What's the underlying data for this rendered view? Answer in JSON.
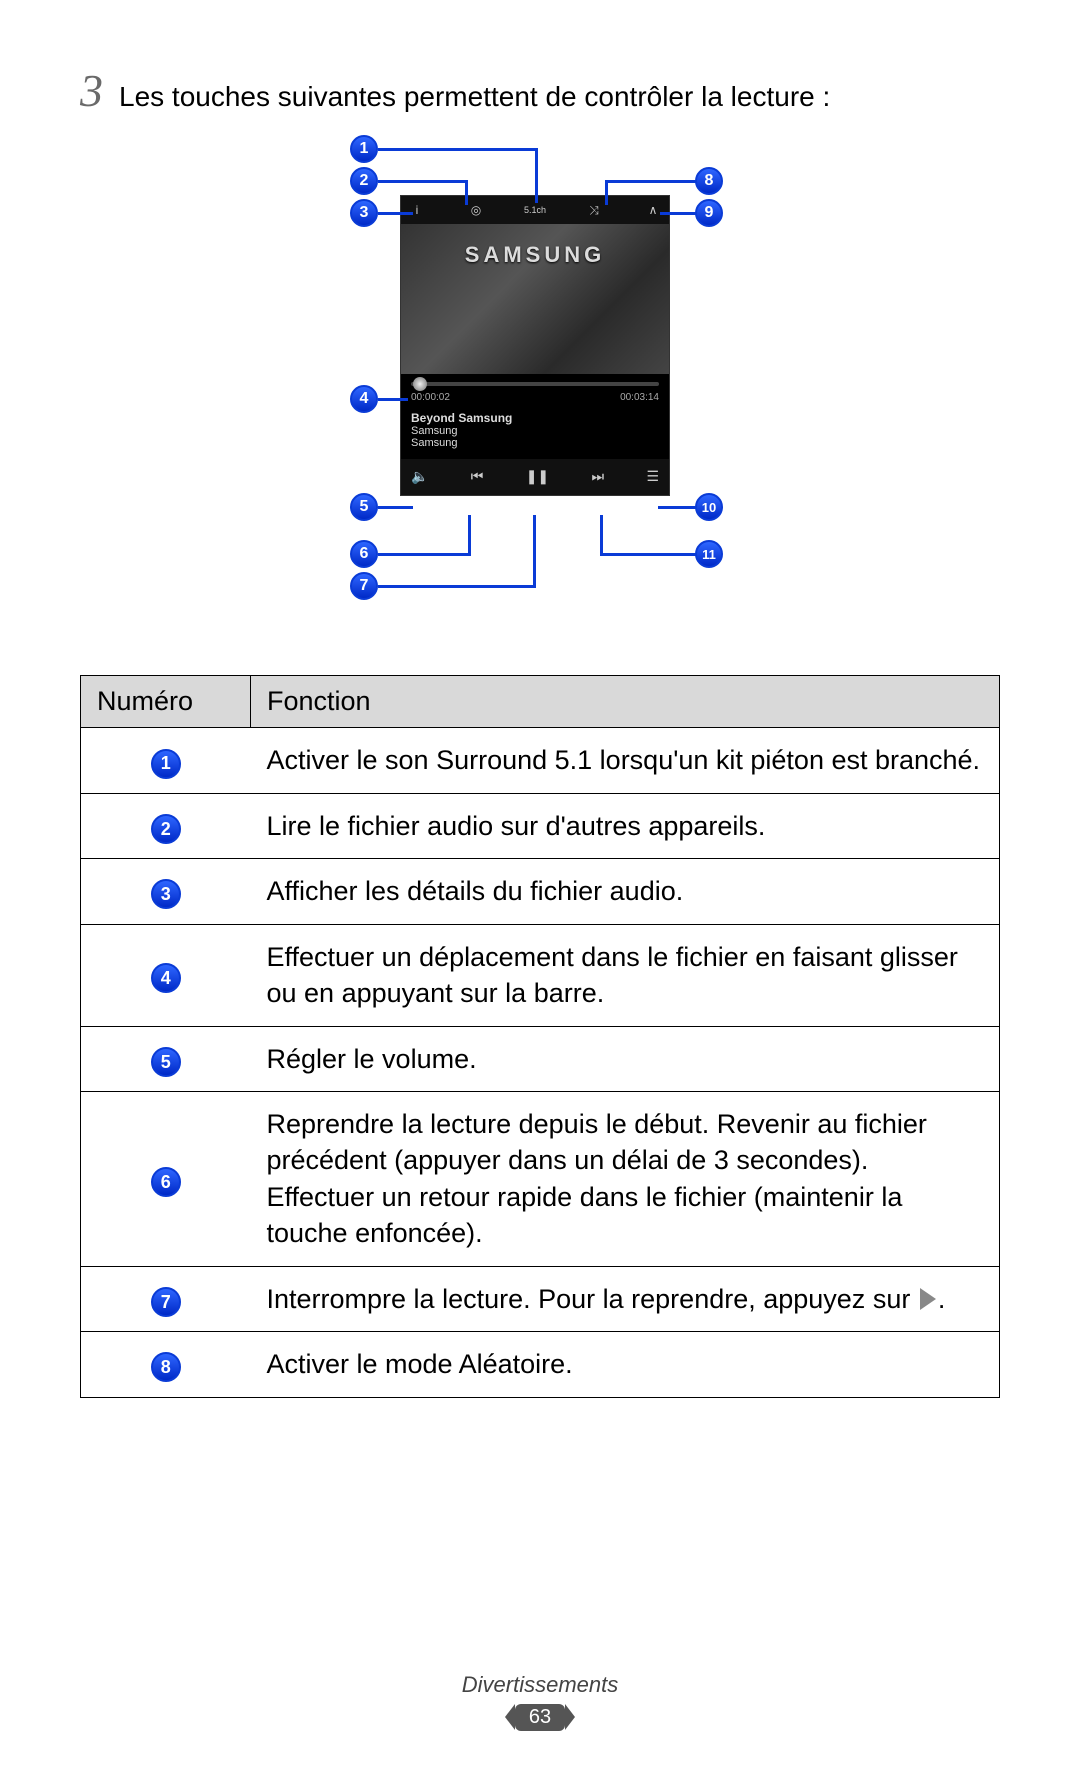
{
  "step": {
    "number": "3",
    "text": "Les touches suivantes permettent de contrôler la lecture :"
  },
  "phone": {
    "brand": "SAMSUNG",
    "time_elapsed": "00:00:02",
    "time_total": "00:03:14",
    "track_title": "Beyond Samsung",
    "track_artist": "Samsung",
    "track_album": "Samsung",
    "top_icons": {
      "info": "i",
      "share": "◎",
      "surround": "5.1ch",
      "shuffle": "⤨",
      "extra": "∧"
    },
    "ctrl_icons": {
      "volume": "🔈",
      "prev": "⏮",
      "pause": "❚❚",
      "next": "⏭",
      "list": "☰"
    }
  },
  "callouts": {
    "1": "1",
    "2": "2",
    "3": "3",
    "4": "4",
    "5": "5",
    "6": "6",
    "7": "7",
    "8": "8",
    "9": "9",
    "10": "10",
    "11": "11"
  },
  "table": {
    "header_num": "Numéro",
    "header_fn": "Fonction",
    "rows": [
      {
        "n": "1",
        "fn_html": "Activer le son Surround 5.1 lorsqu'un kit piéton est branché."
      },
      {
        "n": "2",
        "fn_html": "Lire le fichier audio sur d'autres appareils."
      },
      {
        "n": "3",
        "fn_html": "Afficher les détails du fichier audio."
      },
      {
        "n": "4",
        "fn_html": "Effectuer un déplacement dans le fichier en faisant glisser ou en appuyant sur la barre."
      },
      {
        "n": "5",
        "fn_html": "Régler le volume."
      },
      {
        "n": "6",
        "fn_html": "Reprendre la lecture depuis le début. Revenir au fichier précédent (appuyer dans un délai de 3 secondes). Effectuer un retour rapide dans le fichier (maintenir la touche enfoncée)."
      },
      {
        "n": "7",
        "fn_html_pre": "Interrompre la lecture. Pour la reprendre, appuyez sur ",
        "fn_html_post": ".",
        "has_play": true
      },
      {
        "n": "8",
        "fn_html": "Activer le mode Aléatoire."
      }
    ]
  },
  "footer": {
    "section": "Divertissements",
    "page": "63"
  },
  "colors": {
    "badge": "#0a3bd6"
  }
}
